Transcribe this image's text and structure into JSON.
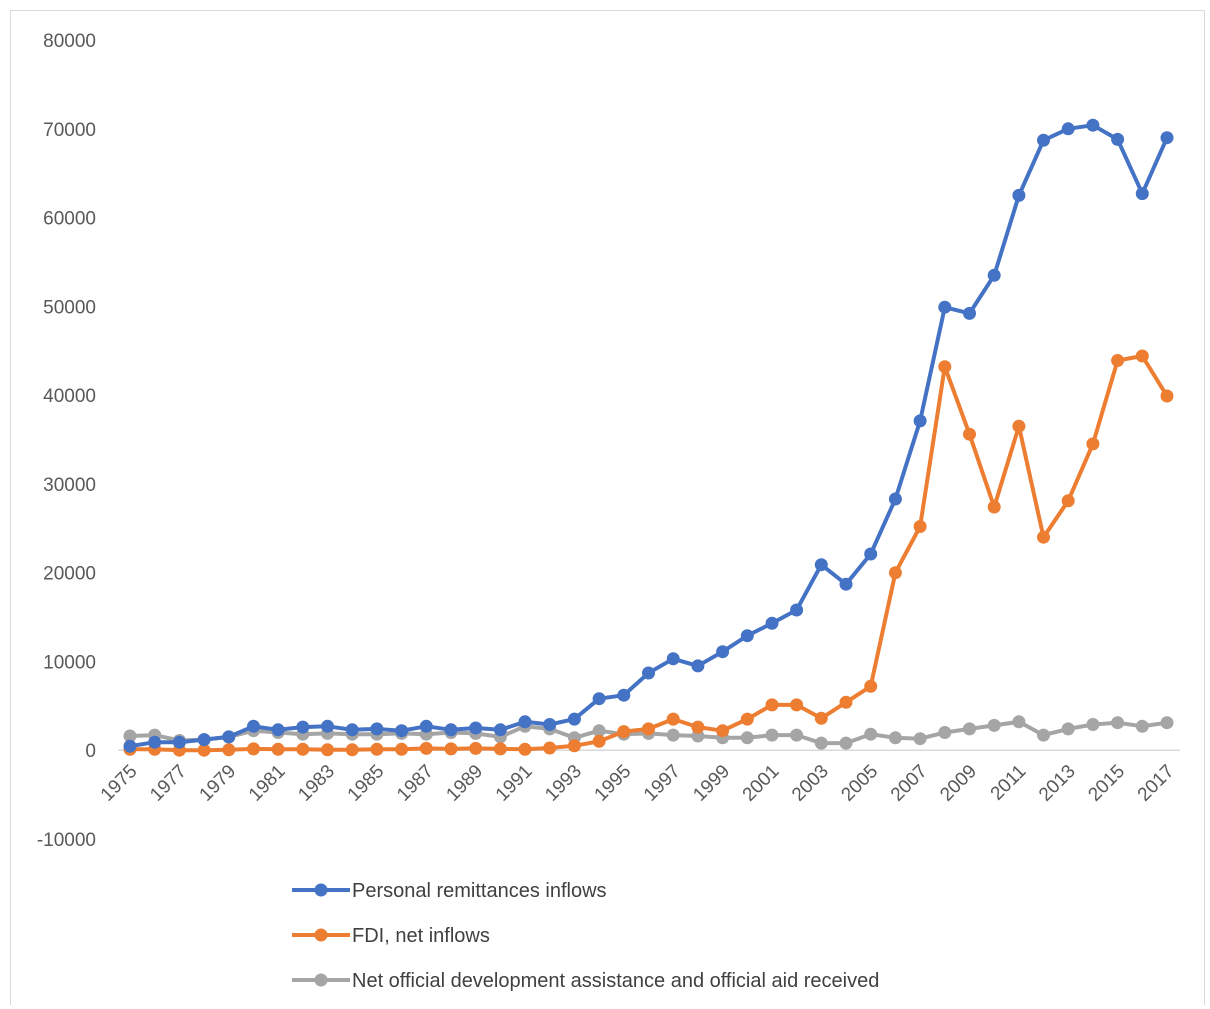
{
  "chart_data": {
    "type": "line",
    "title": "",
    "xlabel": "",
    "ylabel": "",
    "ylim": [
      -10000,
      80000
    ],
    "y_ticks": [
      "80000",
      "70000",
      "60000",
      "50000",
      "40000",
      "30000",
      "20000",
      "10000",
      "0",
      "-10000"
    ],
    "y_tick_values": [
      80000,
      70000,
      60000,
      50000,
      40000,
      30000,
      20000,
      10000,
      0,
      -10000
    ],
    "x_tick_labels": [
      "1975",
      "1977",
      "1979",
      "1981",
      "1983",
      "1985",
      "1987",
      "1989",
      "1991",
      "1993",
      "1995",
      "1997",
      "1999",
      "2001",
      "2003",
      "2005",
      "2007",
      "2009",
      "2011",
      "2013",
      "2015",
      "2017"
    ],
    "x": [
      1975,
      1976,
      1977,
      1978,
      1979,
      1980,
      1981,
      1982,
      1983,
      1984,
      1985,
      1986,
      1987,
      1988,
      1989,
      1990,
      1991,
      1992,
      1993,
      1994,
      1995,
      1996,
      1997,
      1998,
      1999,
      2000,
      2001,
      2002,
      2003,
      2004,
      2005,
      2006,
      2007,
      2008,
      2009,
      2010,
      2011,
      2012,
      2013,
      2014,
      2015,
      2016,
      2017
    ],
    "grid": false,
    "legend_position": "bottom",
    "series": [
      {
        "name": "Personal remittances inflows",
        "color": "#4472c4",
        "values": [
          450,
          900,
          900,
          1200,
          1500,
          2700,
          2300,
          2600,
          2700,
          2300,
          2400,
          2200,
          2700,
          2300,
          2500,
          2300,
          3200,
          2900,
          3500,
          5800,
          6200,
          8700,
          10300,
          9500,
          11100,
          12900,
          14300,
          15800,
          20900,
          18700,
          22100,
          28300,
          37100,
          49900,
          49200,
          53500,
          62500,
          68700,
          70000,
          70400,
          68800,
          62700,
          69000
        ]
      },
      {
        "name": "FDI, net inflows",
        "color": "#ed7d31",
        "values": [
          100,
          100,
          0,
          0,
          50,
          150,
          100,
          100,
          50,
          50,
          100,
          100,
          200,
          150,
          200,
          150,
          100,
          250,
          500,
          1000,
          2100,
          2400,
          3500,
          2600,
          2200,
          3500,
          5100,
          5100,
          3600,
          5400,
          7200,
          20000,
          25200,
          43200,
          35600,
          27400,
          36500,
          24000,
          28100,
          34500,
          43900,
          44400,
          39900
        ]
      },
      {
        "name": "Net official development assistance and official aid received",
        "color": "#a5a5a5",
        "values": [
          1600,
          1700,
          1100,
          1200,
          1500,
          2200,
          2000,
          1800,
          1900,
          1800,
          1800,
          1900,
          1800,
          2000,
          1900,
          1500,
          2700,
          2400,
          1400,
          2200,
          1800,
          1900,
          1700,
          1600,
          1400,
          1400,
          1700,
          1700,
          800,
          800,
          1800,
          1400,
          1300,
          2000,
          2400,
          2800,
          3200,
          1700,
          2400,
          2900,
          3100,
          2700,
          3100
        ]
      }
    ]
  }
}
